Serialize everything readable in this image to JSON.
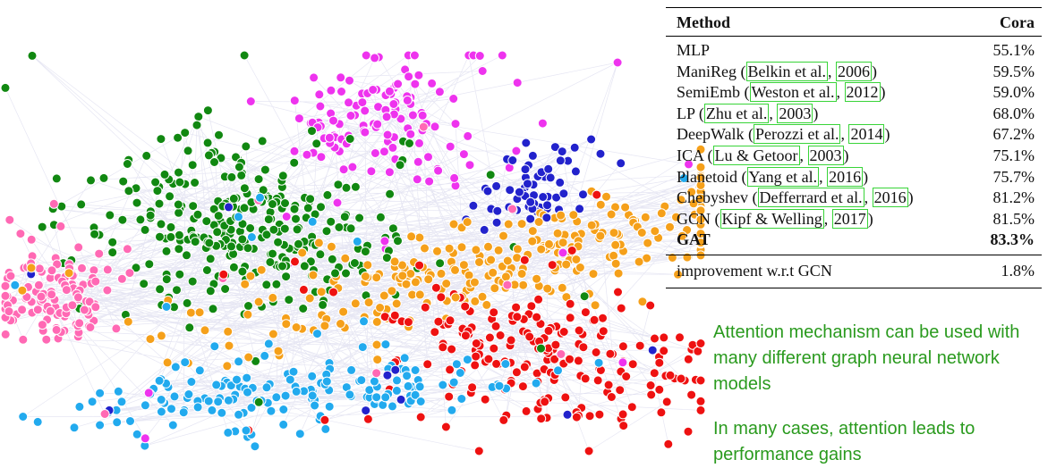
{
  "table": {
    "header": {
      "method": "Method",
      "metric": "Cora"
    },
    "rows": [
      {
        "name": "MLP",
        "cite": null,
        "value": "55.1%"
      },
      {
        "name": "ManiReg",
        "cite": {
          "author": "Belkin et al.",
          "year": "2006"
        },
        "value": "59.5%"
      },
      {
        "name": "SemiEmb",
        "cite": {
          "author": "Weston et al.",
          "year": "2012"
        },
        "value": "59.0%"
      },
      {
        "name": "LP",
        "cite": {
          "author": "Zhu et al.",
          "year": "2003"
        },
        "value": "68.0%"
      },
      {
        "name": "DeepWalk",
        "cite": {
          "author": "Perozzi et al.",
          "year": "2014"
        },
        "value": "67.2%"
      },
      {
        "name": "ICA",
        "cite": {
          "author": "Lu & Getoor",
          "year": "2003"
        },
        "value": "75.1%"
      },
      {
        "name": "Planetoid",
        "cite": {
          "author": "Yang et al.",
          "year": "2016"
        },
        "value": "75.7%"
      },
      {
        "name": "Chebyshev",
        "cite": {
          "author": "Defferrard et al.",
          "year": "2016"
        },
        "value": "81.2%"
      },
      {
        "name": "GCN",
        "cite": {
          "author": "Kipf & Welling",
          "year": "2017"
        },
        "value": "81.5%"
      },
      {
        "name": "GAT",
        "cite": null,
        "value": "83.3%",
        "bold": true
      }
    ],
    "footer": {
      "label": "improvement w.r.t GCN",
      "value": "1.8%"
    }
  },
  "notes": [
    "Attention mechanism can be used with many different graph neural network models",
    "In many cases, attention leads to performance gains"
  ],
  "graph": {
    "edge_color": "#8c8cc8",
    "clusters": [
      {
        "color": "#ee33ee",
        "count": 130
      },
      {
        "color": "#118811",
        "count": 300
      },
      {
        "color": "#ff69b4",
        "count": 120
      },
      {
        "color": "#2222cc",
        "count": 60
      },
      {
        "color": "#f5a01a",
        "count": 280
      },
      {
        "color": "#ee1111",
        "count": 200
      },
      {
        "color": "#22aaee",
        "count": 160
      }
    ]
  }
}
